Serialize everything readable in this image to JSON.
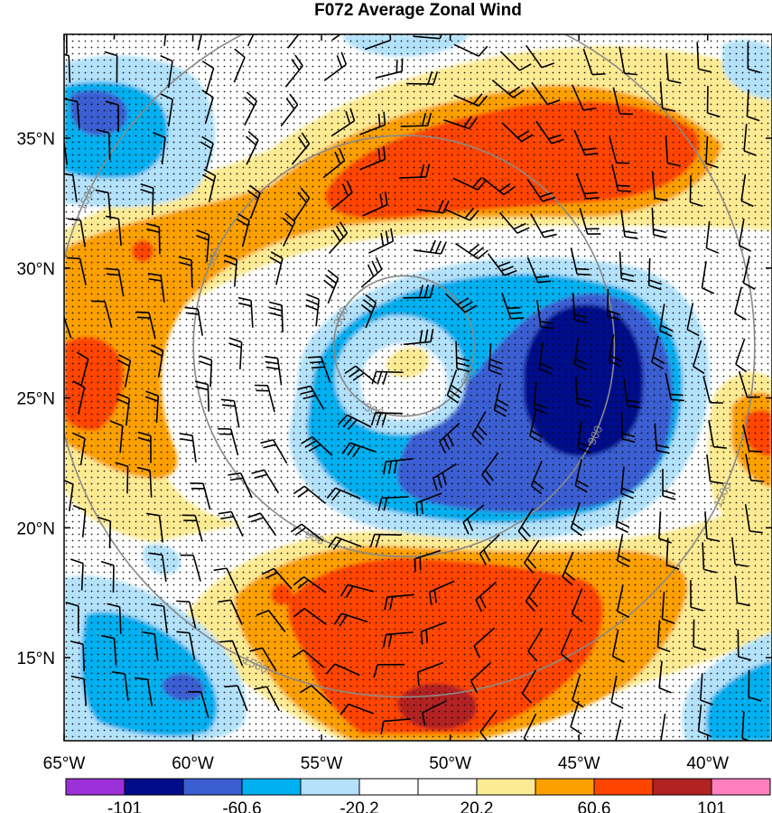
{
  "title": "F072 Average Zonal Wind",
  "map": {
    "lon_labels": [
      "65°W",
      "60°W",
      "55°W",
      "50°W",
      "45°W",
      "40°W"
    ],
    "lat_labels": [
      "35°N",
      "30°N",
      "25°N",
      "20°N",
      "15°N"
    ],
    "lon_values": [
      -65,
      -60,
      -55,
      -50,
      -45,
      -40
    ],
    "lat_values": [
      35,
      30,
      25,
      20,
      15
    ],
    "lon_range": [
      -65,
      -37.5
    ],
    "lat_range": [
      11.8,
      39.0
    ],
    "storm_center": {
      "lon": -51.8,
      "lat": 27.0
    },
    "range_rings": [
      {
        "label": "300",
        "km": 300
      },
      {
        "label": "900",
        "km": 900
      },
      {
        "label": "1500",
        "km": 1500
      }
    ],
    "ring_color": "#8a8a8a",
    "stipple": "significance dots",
    "barbs": "wind barbs"
  },
  "colorbar": {
    "labels": [
      "-101",
      "-60.6",
      "-20.2",
      "20.2",
      "60.6",
      "101"
    ],
    "colors": [
      "#9b30d8",
      "#000d8b",
      "#3b5fd2",
      "#00b0f0",
      "#b3e2fa",
      "#ffffff",
      "#ffffff",
      "#fdeb94",
      "#fca000",
      "#ff4400",
      "#b22222",
      "#ff7fbf"
    ]
  },
  "features": [
    {
      "name": "northern-westerly-jet",
      "lon": -48.5,
      "lat": 35.5,
      "value": 70
    },
    {
      "name": "southern-westerly-jet",
      "lon": -48.5,
      "lat": 16.0,
      "value": 75
    },
    {
      "name": "southern-jet-core",
      "lon": -49.0,
      "lat": 13.8,
      "value": 105
    },
    {
      "name": "western-westerly-band",
      "lon": -63.5,
      "lat": 26.5,
      "value": 65
    },
    {
      "name": "eastern-easterly-core",
      "lon": -45.0,
      "lat": 25.8,
      "value": -110
    },
    {
      "name": "northwest-easterly-cell",
      "lon": -62.5,
      "lat": 37.0,
      "value": -60
    },
    {
      "name": "southwest-easterly-cell",
      "lon": -58.5,
      "lat": 13.5,
      "value": -60
    },
    {
      "name": "eye-westerly-patch",
      "lon": -52.0,
      "lat": 26.8,
      "value": 30
    }
  ]
}
